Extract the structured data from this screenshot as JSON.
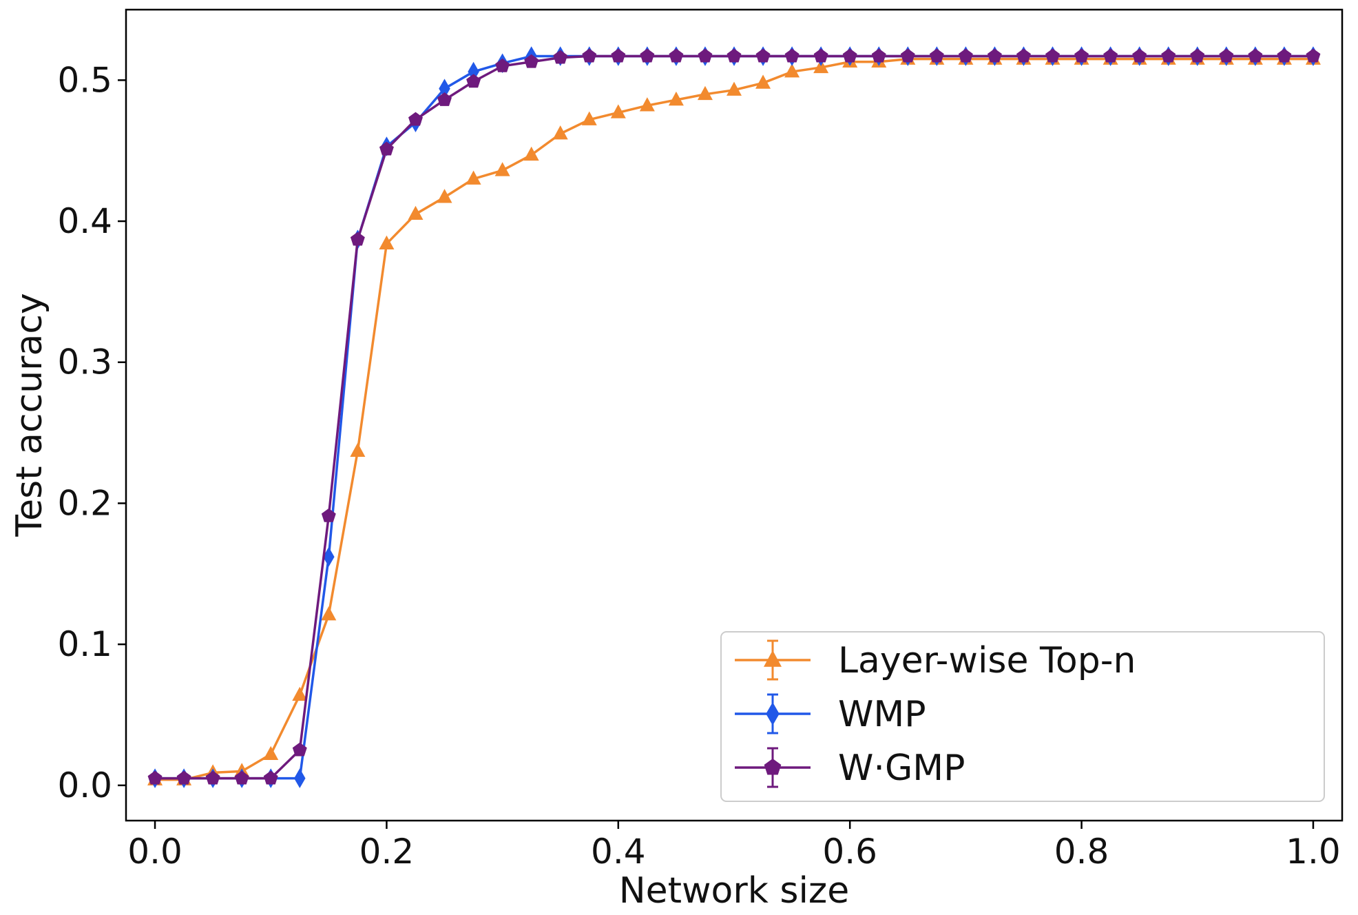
{
  "chart_data": {
    "type": "line",
    "title": "",
    "xlabel": "Network size",
    "ylabel": "Test accuracy",
    "xlim": [
      -0.025,
      1.025
    ],
    "ylim": [
      -0.025,
      0.55
    ],
    "xticks": [
      0.0,
      0.2,
      0.4,
      0.6,
      0.8,
      1.0
    ],
    "xtick_labels": [
      "0.0",
      "0.2",
      "0.4",
      "0.6",
      "0.8",
      "1.0"
    ],
    "yticks": [
      0.0,
      0.1,
      0.2,
      0.3,
      0.4,
      0.5
    ],
    "ytick_labels": [
      "0.0",
      "0.1",
      "0.2",
      "0.3",
      "0.4",
      "0.5"
    ],
    "grid": false,
    "legend_position": "bottom-right",
    "x": [
      0.0,
      0.025,
      0.05,
      0.075,
      0.1,
      0.125,
      0.15,
      0.175,
      0.2,
      0.225,
      0.25,
      0.275,
      0.3,
      0.325,
      0.35,
      0.375,
      0.4,
      0.425,
      0.45,
      0.475,
      0.5,
      0.525,
      0.55,
      0.575,
      0.6,
      0.625,
      0.65,
      0.675,
      0.7,
      0.725,
      0.75,
      0.775,
      0.8,
      0.825,
      0.85,
      0.875,
      0.9,
      0.925,
      0.95,
      0.975,
      1.0
    ],
    "series": [
      {
        "name": "Layer-wise Top-n",
        "color": "#f28a2e",
        "marker": "triangle",
        "values": [
          0.004,
          0.004,
          0.009,
          0.01,
          0.022,
          0.064,
          0.121,
          0.237,
          0.384,
          0.405,
          0.417,
          0.43,
          0.436,
          0.447,
          0.462,
          0.472,
          0.477,
          0.482,
          0.486,
          0.49,
          0.493,
          0.498,
          0.506,
          0.509,
          0.513,
          0.513,
          0.515,
          0.515,
          0.515,
          0.515,
          0.515,
          0.515,
          0.515,
          0.515,
          0.515,
          0.515,
          0.515,
          0.515,
          0.515,
          0.515,
          0.515
        ]
      },
      {
        "name": "WMP",
        "color": "#2158e8",
        "marker": "diamond",
        "values": [
          0.005,
          0.005,
          0.005,
          0.005,
          0.005,
          0.005,
          0.162,
          0.387,
          0.453,
          0.47,
          0.494,
          0.506,
          0.512,
          0.517,
          0.517,
          0.517,
          0.517,
          0.517,
          0.517,
          0.517,
          0.517,
          0.517,
          0.517,
          0.517,
          0.517,
          0.517,
          0.517,
          0.517,
          0.517,
          0.517,
          0.517,
          0.517,
          0.517,
          0.517,
          0.517,
          0.517,
          0.517,
          0.517,
          0.517,
          0.517,
          0.517
        ]
      },
      {
        "name": "W·GMP",
        "color": "#6e1a7d",
        "marker": "pentagon",
        "values": [
          0.005,
          0.005,
          0.005,
          0.005,
          0.005,
          0.025,
          0.191,
          0.387,
          0.451,
          0.472,
          0.486,
          0.499,
          0.51,
          0.513,
          0.516,
          0.517,
          0.517,
          0.517,
          0.517,
          0.517,
          0.517,
          0.517,
          0.517,
          0.517,
          0.517,
          0.517,
          0.517,
          0.517,
          0.517,
          0.517,
          0.517,
          0.517,
          0.517,
          0.517,
          0.517,
          0.517,
          0.517,
          0.517,
          0.517,
          0.517,
          0.517
        ]
      }
    ]
  }
}
